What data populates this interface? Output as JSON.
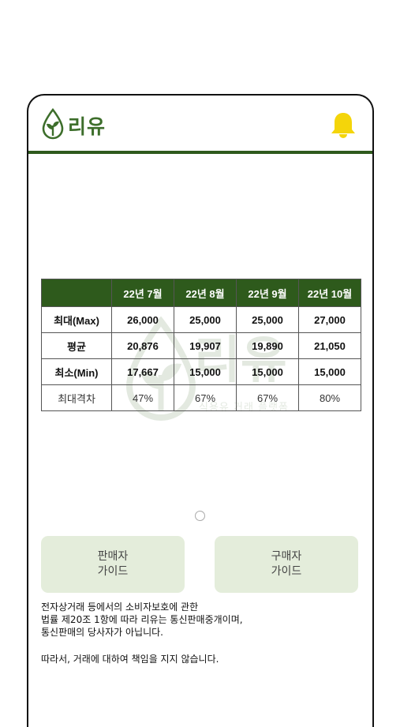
{
  "header": {
    "logo_text": "리유",
    "colors": {
      "brand": "#3d6e2b",
      "header_rule": "#2e5a1c",
      "bell": "#f4d50a"
    },
    "icons": [
      "leaf-drop-logo-icon",
      "bell-icon"
    ]
  },
  "price_table": {
    "columns": [
      "",
      "22년 7월",
      "22년 8월",
      "22년 9월",
      "22년 10월"
    ],
    "rows": [
      {
        "label": "최대(Max)",
        "values": [
          "26,000",
          "25,000",
          "25,000",
          "27,000"
        ]
      },
      {
        "label": "평균",
        "values": [
          "20,876",
          "19,907",
          "19,890",
          "21,050"
        ]
      },
      {
        "label": "최소(Min)",
        "values": [
          "17,667",
          "15,000",
          "15,000",
          "15,000"
        ]
      },
      {
        "label": "최대격차",
        "values": [
          "47%",
          "67%",
          "67%",
          "80%"
        ]
      }
    ]
  },
  "watermark": {
    "text": "리유",
    "subtext": "식용유 거래 플랫폼"
  },
  "pager": {
    "dots": 1,
    "active": 0
  },
  "buttons": {
    "seller_line1": "판매자",
    "seller_line2": "가이드",
    "buyer_line1": "구매자",
    "buyer_line2": "가이드"
  },
  "notice": {
    "line1": "전자상거래 등에서의 소비자보호에 관한",
    "line2": "법률 제20조 1항에 따라 리유는 통신판매중개이며,",
    "line3": "통신판매의 당사자가 아닙니다.",
    "line4": "따라서, 거래에 대하여 책임을 지지 않습니다."
  }
}
